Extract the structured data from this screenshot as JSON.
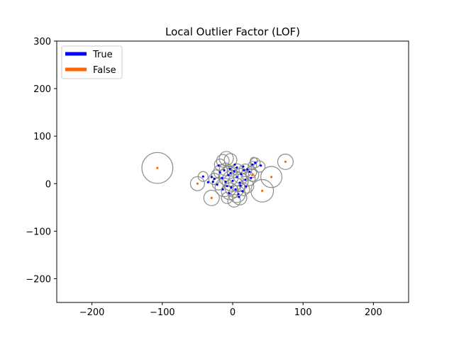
{
  "chart_data": {
    "type": "scatter",
    "title": "Local Outlier Factor (LOF)",
    "xlabel": "",
    "ylabel": "",
    "xlim": [
      -250,
      250
    ],
    "ylim": [
      -250,
      300
    ],
    "xticks": [
      -200,
      -100,
      0,
      100,
      200
    ],
    "yticks": [
      -200,
      -100,
      0,
      100,
      200,
      300
    ],
    "grid": false,
    "legend_position": "top-left",
    "series": [
      {
        "name": "True",
        "color": "#0000ff",
        "points": [
          [
            -42,
            15
          ],
          [
            -35,
            3
          ],
          [
            -30,
            14
          ],
          [
            -26,
            10
          ],
          [
            -20,
            38
          ],
          [
            -18,
            24
          ],
          [
            -15,
            12
          ],
          [
            -12,
            28
          ],
          [
            -10,
            4
          ],
          [
            -8,
            -5
          ],
          [
            -6,
            18
          ],
          [
            -4,
            31
          ],
          [
            -2,
            -8
          ],
          [
            0,
            6
          ],
          [
            2,
            26
          ],
          [
            4,
            -12
          ],
          [
            6,
            14
          ],
          [
            8,
            -22
          ],
          [
            10,
            2
          ],
          [
            12,
            20
          ],
          [
            14,
            -16
          ],
          [
            16,
            28
          ],
          [
            18,
            8
          ],
          [
            21,
            30
          ],
          [
            24,
            25
          ],
          [
            28,
            40
          ],
          [
            32,
            44
          ],
          [
            40,
            38
          ],
          [
            -5,
            -20
          ],
          [
            9,
            -28
          ],
          [
            -22,
            -2
          ],
          [
            3,
            40
          ],
          [
            -14,
            -12
          ],
          [
            19,
            -6
          ],
          [
            26,
            12
          ],
          [
            -28,
            4
          ],
          [
            6,
            34
          ],
          [
            11,
            -4
          ],
          [
            -3,
            22
          ],
          [
            15,
            36
          ]
        ]
      },
      {
        "name": "False",
        "color": "#ff6600",
        "points": [
          [
            -107,
            33
          ],
          [
            -50,
            0
          ],
          [
            -30,
            -30
          ],
          [
            28,
            18
          ],
          [
            42,
            -15
          ],
          [
            55,
            14
          ],
          [
            75,
            46
          ]
        ]
      }
    ],
    "circles": [
      [
        -107,
        33,
        22
      ],
      [
        -50,
        0,
        10
      ],
      [
        -42,
        15,
        7
      ],
      [
        -30,
        -30,
        11
      ],
      [
        -26,
        10,
        8
      ],
      [
        -18,
        40,
        8
      ],
      [
        -14,
        48,
        9
      ],
      [
        -9,
        53,
        10
      ],
      [
        -3,
        50,
        9
      ],
      [
        -17,
        25,
        10
      ],
      [
        -10,
        30,
        9
      ],
      [
        -6,
        15,
        14
      ],
      [
        0,
        6,
        15
      ],
      [
        3,
        -8,
        14
      ],
      [
        -4,
        -16,
        12
      ],
      [
        8,
        4,
        14
      ],
      [
        6,
        -22,
        12
      ],
      [
        12,
        16,
        11
      ],
      [
        15,
        -12,
        9
      ],
      [
        -12,
        -8,
        13
      ],
      [
        -20,
        0,
        9
      ],
      [
        18,
        28,
        9
      ],
      [
        22,
        10,
        10
      ],
      [
        26,
        24,
        8
      ],
      [
        28,
        38,
        6
      ],
      [
        32,
        44,
        7
      ],
      [
        30,
        48,
        5
      ],
      [
        38,
        36,
        8
      ],
      [
        42,
        -15,
        16
      ],
      [
        55,
        14,
        15
      ],
      [
        75,
        46,
        11
      ],
      [
        28,
        18,
        9
      ],
      [
        10,
        -30,
        10
      ],
      [
        2,
        -36,
        9
      ],
      [
        -8,
        -30,
        8
      ],
      [
        20,
        -5,
        10
      ],
      [
        -24,
        20,
        6
      ],
      [
        6,
        30,
        8
      ],
      [
        -1,
        26,
        7
      ]
    ]
  }
}
